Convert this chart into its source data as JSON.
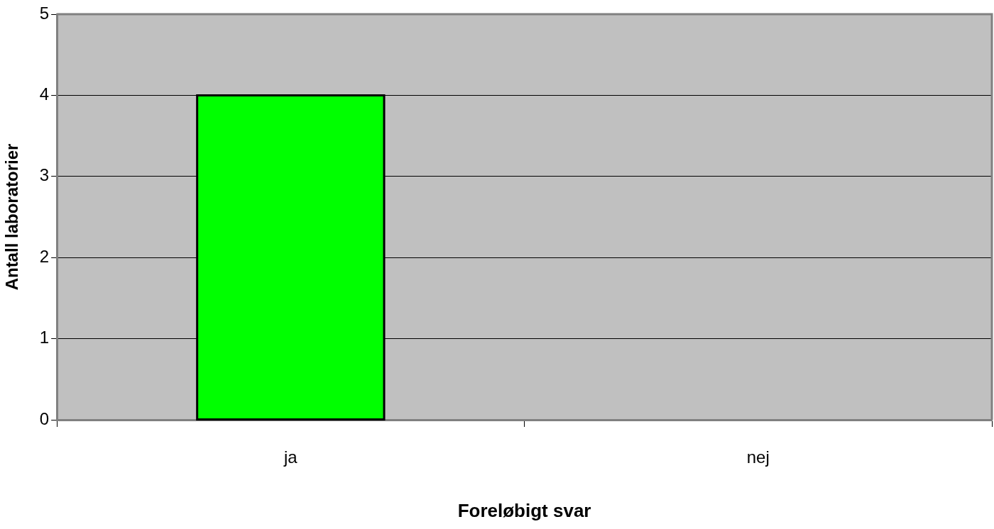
{
  "chart_data": {
    "type": "bar",
    "xlabel": "Foreløbigt svar",
    "ylabel": "Antall laboratorier",
    "categories": [
      "ja",
      "nej"
    ],
    "series": [
      {
        "color": "#00ff00",
        "values": [
          4,
          0
        ]
      }
    ],
    "ylim": [
      0,
      5
    ],
    "yticks": [
      0,
      1,
      2,
      3,
      4,
      5
    ],
    "grid": "y",
    "legend": false
  }
}
